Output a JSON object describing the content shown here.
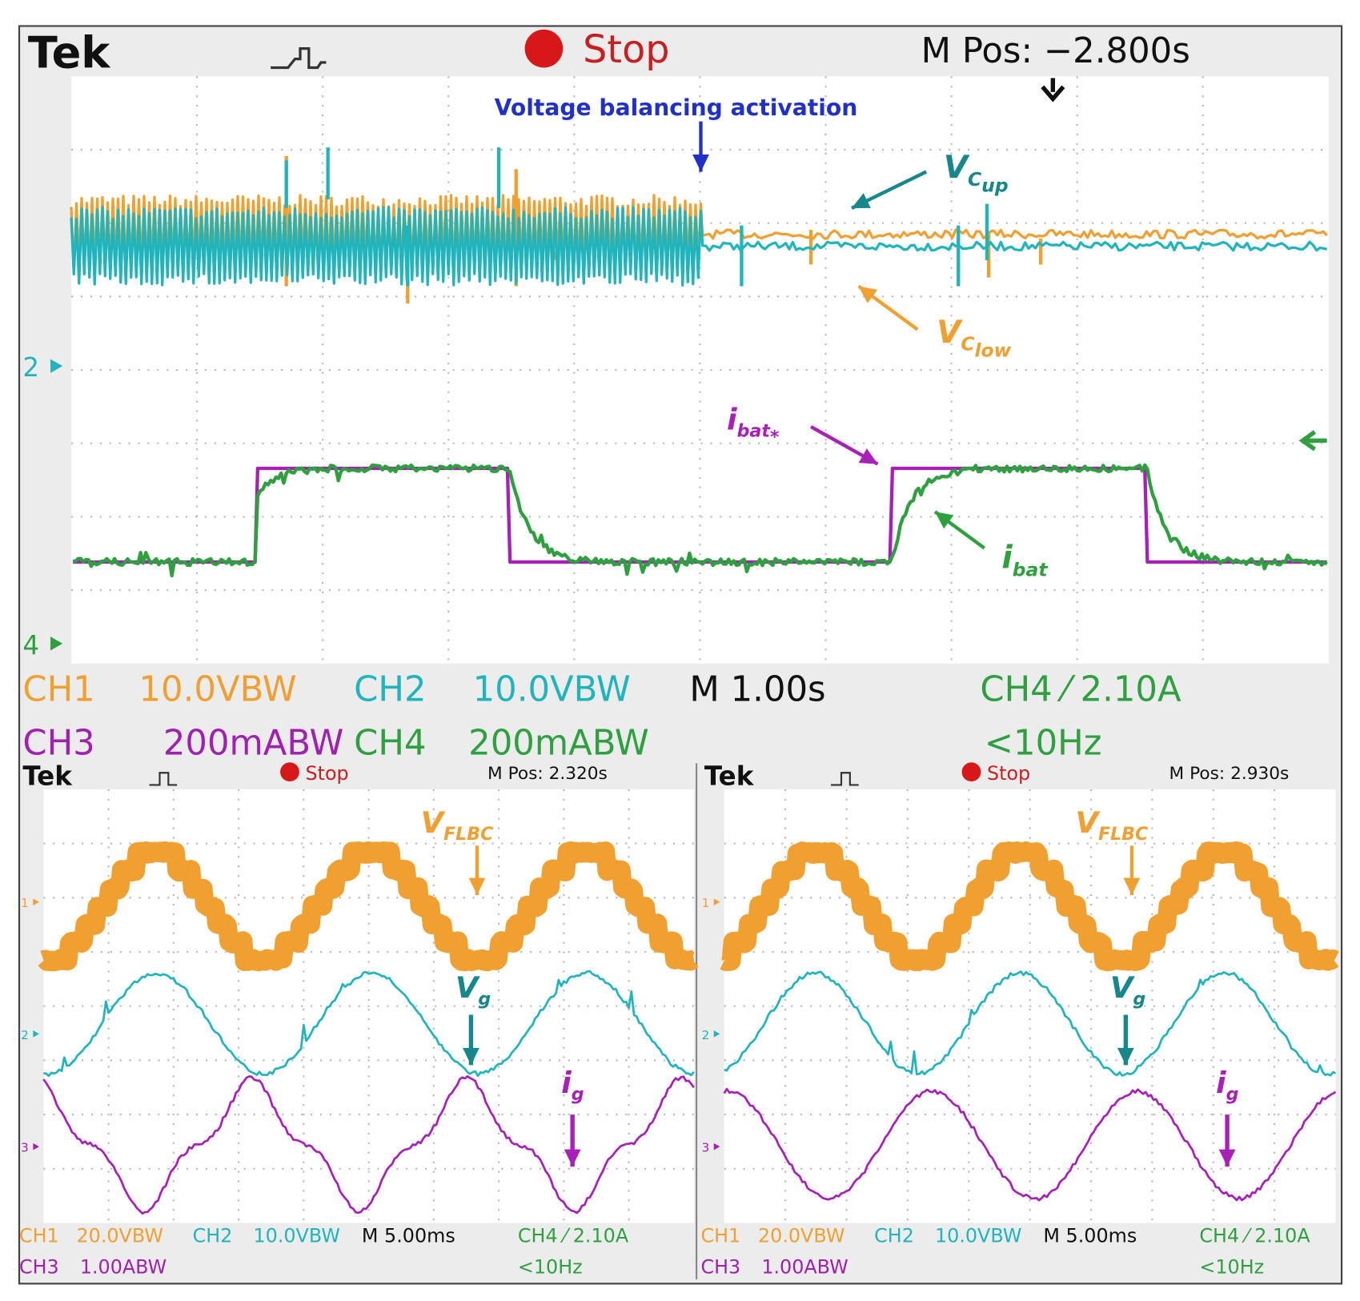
{
  "top": {
    "brand": "Tek",
    "status": "Stop",
    "mpos": "M Pos: −2.800s",
    "annotation": "Voltage balancing activation",
    "labels": {
      "vcup": [
        "V",
        "C",
        "up"
      ],
      "vclow": [
        "V",
        "C",
        "low"
      ],
      "ibatref": [
        "i",
        "bat",
        "*"
      ],
      "ibat": [
        "i",
        "bat"
      ]
    },
    "markers": [
      "2",
      "4"
    ],
    "readouts": [
      [
        "CH1",
        "10.0VBW",
        "CH2",
        "10.0VBW",
        "M 1.00s",
        "CH4 ⁄ 2.10A"
      ],
      [
        "CH3",
        "200mABW",
        "CH4",
        "200mABW",
        "<10Hz"
      ]
    ]
  },
  "panels": [
    {
      "brand": "Tek",
      "status": "Stop",
      "mpos": "M Pos: 2.320s",
      "labels": {
        "vflbc": [
          "V",
          "FLBC"
        ],
        "vg": [
          "V",
          "g"
        ],
        "ig": [
          "i",
          "g"
        ]
      },
      "markers": [
        "1",
        "2",
        "3"
      ],
      "readouts": [
        [
          "CH1",
          "20.0VBW",
          "CH2",
          "10.0VBW",
          "M 5.00ms",
          "CH4 ⁄ 2.10A"
        ],
        [
          "CH3",
          "1.00ABW",
          "<10Hz"
        ]
      ]
    },
    {
      "brand": "Tek",
      "status": "Stop",
      "mpos": "M Pos: 2.930s",
      "labels": {
        "vflbc": [
          "V",
          "FLBC"
        ],
        "vg": [
          "V",
          "g"
        ],
        "ig": [
          "i",
          "g"
        ]
      },
      "markers": [
        "1",
        "2",
        "3"
      ],
      "readouts": [
        [
          "CH1",
          "20.0VBW",
          "CH2",
          "10.0VBW",
          "M 5.00ms",
          "CH4 ⁄ 2.10A"
        ],
        [
          "CH3",
          "1.00ABW",
          "<10Hz"
        ]
      ]
    }
  ]
}
